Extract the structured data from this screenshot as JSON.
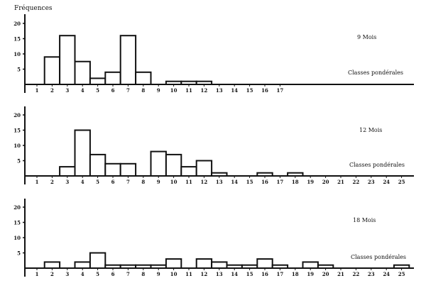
{
  "chart_data": {
    "type": "bar",
    "ylabel": "Fréquences",
    "xlabel": "Classes pondérales",
    "grid": false,
    "panels": [
      {
        "title": "9 Mois",
        "xlabel": "Classes pondérales",
        "ylim": [
          0,
          20
        ],
        "yticks": [
          5,
          10,
          15,
          20
        ],
        "xticks": [
          1,
          2,
          3,
          4,
          5,
          6,
          7,
          8,
          9,
          10,
          11,
          12,
          13,
          14,
          15,
          16,
          17
        ],
        "categories": [
          2,
          3,
          4,
          5,
          6,
          7,
          8,
          10,
          11,
          12
        ],
        "values": [
          9,
          16,
          7.5,
          2,
          4,
          16,
          4,
          1,
          1,
          1
        ]
      },
      {
        "title": "12 Mois",
        "xlabel": "Classes pondérales",
        "ylim": [
          0,
          20
        ],
        "yticks": [
          5,
          10,
          15,
          20
        ],
        "xticks": [
          1,
          2,
          3,
          4,
          5,
          6,
          7,
          8,
          9,
          10,
          11,
          12,
          13,
          14,
          15,
          16,
          17,
          18,
          19,
          20,
          21,
          22,
          23,
          24,
          25
        ],
        "categories": [
          3,
          4,
          5,
          6,
          7,
          9,
          10,
          11,
          12,
          13,
          16,
          18
        ],
        "values": [
          3,
          15,
          7,
          4,
          4,
          8,
          7,
          3,
          5,
          1,
          1,
          1
        ]
      },
      {
        "title": "18 Mois",
        "xlabel": "Classes pondérales",
        "ylim": [
          0,
          20
        ],
        "yticks": [
          5,
          10,
          15,
          20
        ],
        "xticks": [
          1,
          2,
          3,
          4,
          5,
          6,
          7,
          8,
          9,
          10,
          11,
          12,
          13,
          14,
          15,
          16,
          17,
          18,
          19,
          20,
          21,
          22,
          23,
          24,
          25
        ],
        "categories": [
          2,
          4,
          5,
          6,
          7,
          8,
          9,
          10,
          12,
          13,
          14,
          15,
          16,
          17,
          19,
          20,
          25
        ],
        "values": [
          2,
          2,
          5,
          1,
          1,
          1,
          1,
          3,
          3,
          2,
          1,
          1,
          3,
          1,
          2,
          1,
          1
        ]
      }
    ]
  }
}
